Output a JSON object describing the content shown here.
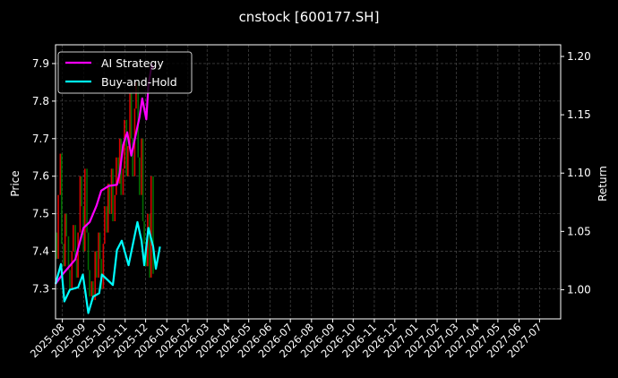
{
  "chart_data": {
    "type": "line",
    "title": "cnstock [600177.SH]",
    "ylabel_left": "Price",
    "ylabel_right": "Return",
    "ylim_left": [
      7.22,
      7.95
    ],
    "ylim_right": [
      0.975,
      1.21
    ],
    "yticks_left": [
      "7.3",
      "7.4",
      "7.5",
      "7.6",
      "7.7",
      "7.8",
      "7.9"
    ],
    "yticks_right": [
      "1.00",
      "1.05",
      "1.10",
      "1.15",
      "1.20"
    ],
    "xticks": [
      "2025-08",
      "2025-09",
      "2025-10",
      "2025-11",
      "2025-12",
      "2026-01",
      "2026-02",
      "2026-03",
      "2026-04",
      "2026-05",
      "2026-06",
      "2026-07",
      "2026-08",
      "2026-09",
      "2026-10",
      "2026-11",
      "2026-12",
      "2027-01",
      "2027-02",
      "2027-03",
      "2027-04",
      "2027-05",
      "2027-06",
      "2027-07"
    ],
    "xlim": [
      "2025-07-22",
      "2027-08-01"
    ],
    "grid": true,
    "legend_position": "top-left",
    "price_bars": {
      "start": "2025-07-22",
      "end": "2025-12-12",
      "up_color": "#ff0000",
      "down_color": "#008000",
      "close": [
        7.45,
        7.38,
        7.55,
        7.66,
        7.42,
        7.36,
        7.5,
        7.44,
        7.35,
        7.3,
        7.4,
        7.47,
        7.38,
        7.33,
        7.45,
        7.6,
        7.52,
        7.4,
        7.62,
        7.45,
        7.35,
        7.28,
        7.32,
        7.27,
        7.4,
        7.33,
        7.45,
        7.38,
        7.3,
        7.42,
        7.52,
        7.45,
        7.58,
        7.5,
        7.62,
        7.48,
        7.55,
        7.65,
        7.58,
        7.7,
        7.55,
        7.62,
        7.75,
        7.6,
        7.68,
        7.82,
        7.7,
        7.6,
        7.78,
        7.85,
        7.65,
        7.55,
        7.7,
        7.48,
        7.42,
        7.36,
        7.5,
        7.33,
        7.6,
        7.34
      ]
    },
    "series": [
      {
        "name": "AI Strategy",
        "color": "#ff00ff",
        "x": [
          "2025-07-22",
          "2025-08-01",
          "2025-08-20",
          "2025-09-01",
          "2025-09-10",
          "2025-09-20",
          "2025-09-27",
          "2025-10-08",
          "2025-10-20",
          "2025-10-24",
          "2025-10-29",
          "2025-11-04",
          "2025-11-10",
          "2025-11-22",
          "2025-11-26",
          "2025-12-02",
          "2025-12-05",
          "2025-12-10",
          "2025-12-12"
        ],
        "values": [
          1.005,
          1.013,
          1.026,
          1.053,
          1.058,
          1.072,
          1.085,
          1.089,
          1.09,
          1.1,
          1.124,
          1.135,
          1.115,
          1.148,
          1.164,
          1.146,
          1.175,
          1.193,
          1.19
        ]
      },
      {
        "name": "Buy-and-Hold",
        "color": "#00ffff",
        "x": [
          "2025-07-22",
          "2025-07-30",
          "2025-08-04",
          "2025-08-12",
          "2025-08-24",
          "2025-08-31",
          "2025-09-04",
          "2025-09-08",
          "2025-09-15",
          "2025-09-24",
          "2025-09-28",
          "2025-10-07",
          "2025-10-14",
          "2025-10-20",
          "2025-10-27",
          "2025-11-06",
          "2025-11-19",
          "2025-11-25",
          "2025-11-29",
          "2025-12-05",
          "2025-12-12",
          "2025-12-16",
          "2025-12-22"
        ],
        "values": [
          1.005,
          1.022,
          0.99,
          1.0,
          1.002,
          1.013,
          0.997,
          0.98,
          0.994,
          0.997,
          1.013,
          1.008,
          1.004,
          1.034,
          1.042,
          1.021,
          1.058,
          1.042,
          1.021,
          1.053,
          1.037,
          1.018,
          1.037
        ]
      }
    ]
  }
}
